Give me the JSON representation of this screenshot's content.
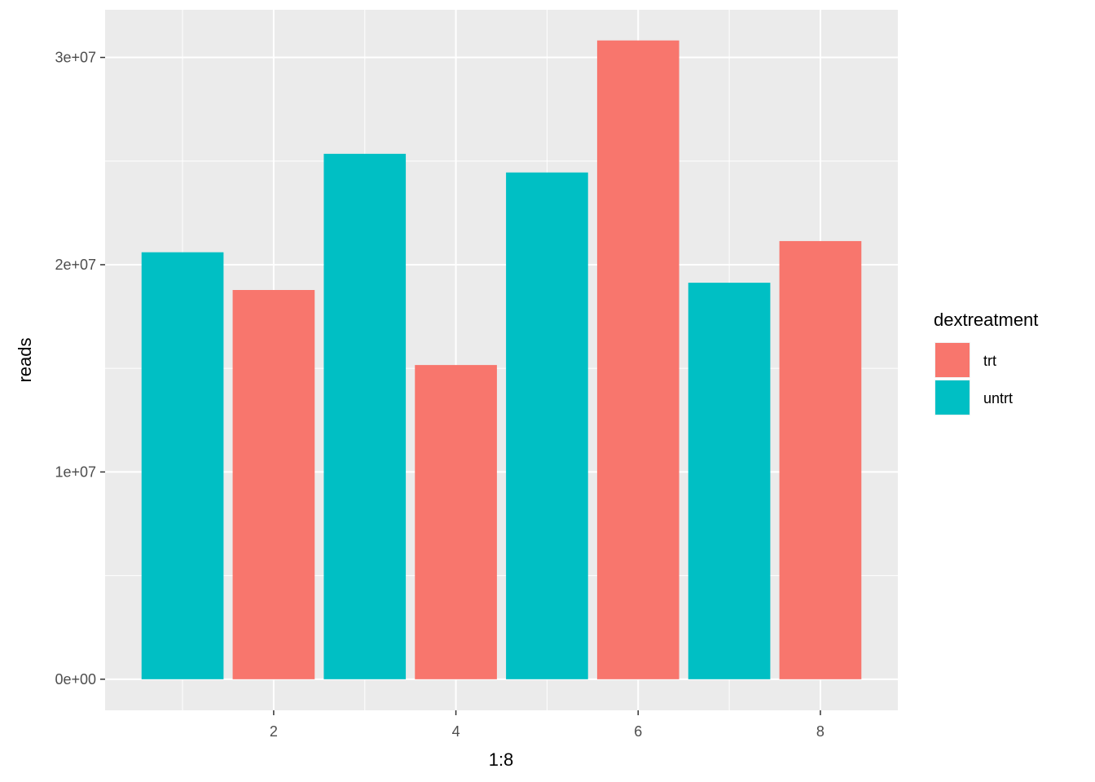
{
  "chart_data": {
    "type": "bar",
    "x": [
      1,
      2,
      3,
      4,
      5,
      6,
      7,
      8
    ],
    "values": [
      20600000,
      18780000,
      25350000,
      15160000,
      24450000,
      30820000,
      19130000,
      21140000
    ],
    "groups": [
      "untrt",
      "trt",
      "untrt",
      "trt",
      "untrt",
      "trt",
      "untrt",
      "trt"
    ],
    "xlabel": "1:8",
    "ylabel": "reads",
    "xlim": [
      0.15,
      8.85
    ],
    "ylim": [
      -1500000,
      32300000
    ],
    "x_ticks": [
      2,
      4,
      6,
      8
    ],
    "x_tick_labels": [
      "2",
      "4",
      "6",
      "8"
    ],
    "x_minor_ticks": [
      1,
      3,
      5,
      7
    ],
    "y_ticks": [
      0,
      10000000,
      20000000,
      30000000
    ],
    "y_tick_labels": [
      "0e+00",
      "1e+07",
      "2e+07",
      "3e+07"
    ],
    "y_minor_ticks": [
      5000000,
      15000000,
      25000000
    ],
    "grid": true,
    "legend": {
      "title": "dextreatment",
      "position": "right",
      "entries": [
        {
          "label": "trt",
          "color": "#F8766D"
        },
        {
          "label": "untrt",
          "color": "#00BFC4"
        }
      ]
    },
    "colors": {
      "trt": "#F8766D",
      "untrt": "#00BFC4",
      "panel_background": "#EBEBEB",
      "grid": "#FFFFFF"
    }
  }
}
